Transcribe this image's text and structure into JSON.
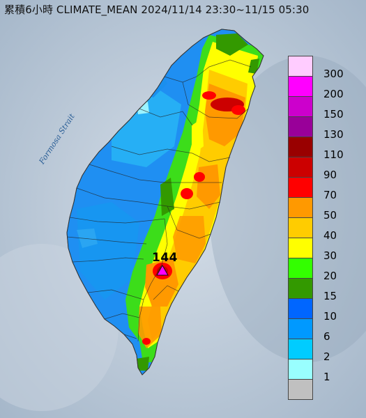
{
  "title": "累積6小時 CLIMATE_MEAN 2024/11/14 23:30~11/15 05:30",
  "strait_label": "Formosa Strait",
  "peak": {
    "value": "144",
    "marker": "triangle-marker"
  },
  "legend": [
    {
      "label": "300",
      "color": "#ffccff"
    },
    {
      "label": "200",
      "color": "#ff00ff"
    },
    {
      "label": "150",
      "color": "#cc00cc"
    },
    {
      "label": "130",
      "color": "#990099"
    },
    {
      "label": "110",
      "color": "#990000"
    },
    {
      "label": "90",
      "color": "#cc0000"
    },
    {
      "label": "70",
      "color": "#ff0000"
    },
    {
      "label": "50",
      "color": "#ff9900"
    },
    {
      "label": "40",
      "color": "#ffcc00"
    },
    {
      "label": "30",
      "color": "#ffff00"
    },
    {
      "label": "20",
      "color": "#33ff00"
    },
    {
      "label": "15",
      "color": "#339900"
    },
    {
      "label": "10",
      "color": "#0066ff"
    },
    {
      "label": "6",
      "color": "#0099ff"
    },
    {
      "label": "2",
      "color": "#00ccff"
    },
    {
      "label": "1",
      "color": "#99ffff"
    },
    {
      "label": "",
      "color": "#c0c0c0"
    }
  ]
}
